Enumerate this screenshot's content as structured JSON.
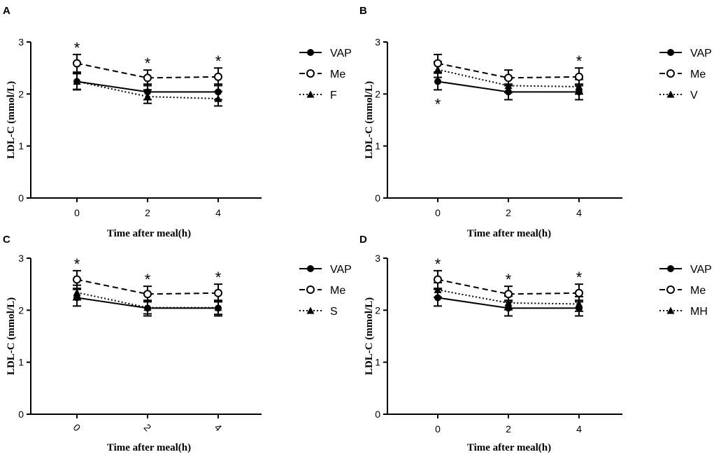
{
  "chart_data": [
    {
      "panel": "A",
      "type": "line",
      "categories": [
        "0",
        "2",
        "4"
      ],
      "xlabel": "Time after meal(h)",
      "ylabel": "LDL-C (mmol/L)",
      "ylim": [
        0,
        3
      ],
      "yticks": [
        "0",
        "1",
        "2",
        "3"
      ],
      "series": [
        {
          "name": "VAP",
          "style": "solid",
          "marker": "filled-circle",
          "values": [
            2.24,
            2.04,
            2.04
          ],
          "errors": [
            0.16,
            0.15,
            0.15
          ]
        },
        {
          "name": "Me",
          "style": "dashed",
          "marker": "open-circle",
          "values": [
            2.59,
            2.31,
            2.33
          ],
          "errors": [
            0.17,
            0.15,
            0.17
          ]
        },
        {
          "name": "F",
          "style": "dotted",
          "marker": "triangle",
          "values": [
            2.24,
            1.95,
            1.91
          ],
          "errors": [
            0.15,
            0.13,
            0.14
          ]
        }
      ],
      "annotations": [
        {
          "x": "0",
          "text": "*",
          "position": "above"
        },
        {
          "x": "2",
          "text": "*",
          "position": "above"
        },
        {
          "x": "4",
          "text": "*",
          "position": "above"
        }
      ]
    },
    {
      "panel": "B",
      "type": "line",
      "categories": [
        "0",
        "2",
        "4"
      ],
      "xlabel": "Time after meal(h)",
      "ylabel": "LDL-C (mmol/L)",
      "ylim": [
        0,
        3
      ],
      "yticks": [
        "0",
        "1",
        "2",
        "3"
      ],
      "series": [
        {
          "name": "VAP",
          "style": "solid",
          "marker": "filled-circle",
          "values": [
            2.24,
            2.04,
            2.04
          ],
          "errors": [
            0.16,
            0.15,
            0.15
          ]
        },
        {
          "name": "Me",
          "style": "dashed",
          "marker": "open-circle",
          "values": [
            2.59,
            2.31,
            2.33
          ],
          "errors": [
            0.17,
            0.15,
            0.17
          ]
        },
        {
          "name": "V",
          "style": "dotted",
          "marker": "triangle",
          "values": [
            2.47,
            2.16,
            2.14
          ],
          "errors": [
            0.15,
            0.13,
            0.14
          ]
        }
      ],
      "annotations": [
        {
          "x": "0",
          "text": "*",
          "position": "below"
        },
        {
          "x": "4",
          "text": "*",
          "position": "above"
        }
      ]
    },
    {
      "panel": "C",
      "type": "line",
      "categories": [
        "0",
        "2",
        "4"
      ],
      "tick_rotation": 45,
      "xlabel": "Time after meal(h)",
      "ylabel": "LDL-C (mmol/L)",
      "ylim": [
        0,
        3
      ],
      "yticks": [
        "0",
        "1",
        "2",
        "3"
      ],
      "series": [
        {
          "name": "VAP",
          "style": "solid",
          "marker": "filled-circle",
          "values": [
            2.24,
            2.04,
            2.04
          ],
          "errors": [
            0.16,
            0.15,
            0.15
          ]
        },
        {
          "name": "Me",
          "style": "dashed",
          "marker": "open-circle",
          "values": [
            2.59,
            2.31,
            2.33
          ],
          "errors": [
            0.17,
            0.15,
            0.17
          ]
        },
        {
          "name": "S",
          "style": "dotted",
          "marker": "triangle",
          "values": [
            2.34,
            2.05,
            2.05
          ],
          "errors": [
            0.14,
            0.12,
            0.13
          ]
        }
      ],
      "annotations": [
        {
          "x": "0",
          "text": "*",
          "position": "above"
        },
        {
          "x": "2",
          "text": "*",
          "position": "above"
        },
        {
          "x": "4",
          "text": "*",
          "position": "above"
        }
      ]
    },
    {
      "panel": "D",
      "type": "line",
      "categories": [
        "0",
        "2",
        "4"
      ],
      "xlabel": "Time after meal(h)",
      "ylabel": "LDL-C (mmol/L)",
      "ylim": [
        0,
        3
      ],
      "yticks": [
        "0",
        "1",
        "2",
        "3"
      ],
      "series": [
        {
          "name": "VAP",
          "style": "solid",
          "marker": "filled-circle",
          "values": [
            2.24,
            2.04,
            2.04
          ],
          "errors": [
            0.16,
            0.15,
            0.15
          ]
        },
        {
          "name": "Me",
          "style": "dashed",
          "marker": "open-circle",
          "values": [
            2.59,
            2.31,
            2.33
          ],
          "errors": [
            0.17,
            0.15,
            0.17
          ]
        },
        {
          "name": "MH",
          "style": "dotted",
          "marker": "triangle",
          "values": [
            2.39,
            2.14,
            2.12
          ],
          "errors": [
            0.14,
            0.13,
            0.14
          ]
        }
      ],
      "annotations": [
        {
          "x": "0",
          "text": "*",
          "position": "above"
        },
        {
          "x": "2",
          "text": "*",
          "position": "above"
        },
        {
          "x": "4",
          "text": "*",
          "position": "above"
        }
      ]
    }
  ]
}
